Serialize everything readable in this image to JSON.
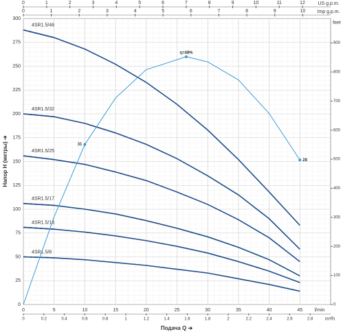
{
  "chart_data": {
    "type": "line",
    "y_axis_label": "Напор H (метры) ➔",
    "x_axis_label": "Подача Q ➔",
    "x_unit": "l/min",
    "xlim": [
      0,
      50
    ],
    "xticks": [
      0,
      5,
      10,
      15,
      20,
      25,
      30,
      35,
      40,
      45
    ],
    "ylim": [
      0,
      300
    ],
    "yticks": [
      0,
      25,
      50,
      75,
      100,
      125,
      150,
      175,
      200,
      225,
      250,
      275,
      300
    ],
    "grid": true,
    "x2_unit": "m³/h",
    "x2lim": [
      0,
      3
    ],
    "x2ticks": [
      0,
      0.2,
      0.4,
      0.6,
      0.8,
      1,
      1.2,
      1.4,
      1.6,
      1.8,
      2,
      2.2,
      2.4,
      2.6,
      2.8
    ],
    "x3_unit": "US g.p.m.",
    "x3lim": [
      0,
      13.21
    ],
    "x3ticks": [
      0,
      1,
      2,
      3,
      4,
      5,
      6,
      7,
      8,
      9,
      10,
      11,
      12
    ],
    "x4_unit": "Imp g.p.m.",
    "x4lim": [
      0,
      11
    ],
    "x4ticks": [
      0,
      1,
      2,
      3,
      4,
      5,
      6,
      7,
      8,
      9,
      10
    ],
    "y2_unit": "feet",
    "y2lim": [
      0,
      984
    ],
    "y2ticks": [
      0,
      100,
      200,
      300,
      400,
      500,
      600,
      700,
      800,
      900
    ],
    "x": [
      0,
      5,
      10,
      15,
      20,
      25,
      30,
      35,
      40,
      45
    ],
    "series": [
      {
        "name": "4SR1.5/46",
        "color": "#1d4d8a",
        "values": [
          288,
          280,
          268,
          252,
          233,
          210,
          183,
          152,
          118,
          83
        ]
      },
      {
        "name": "4SR1.5/32",
        "color": "#1d4d8a",
        "values": [
          200,
          197,
          190,
          180,
          168,
          153,
          135,
          115,
          90,
          58
        ]
      },
      {
        "name": "4SR1.5/25",
        "color": "#1d4d8a",
        "values": [
          156,
          152,
          147,
          139,
          130,
          118,
          105,
          89,
          70,
          45
        ]
      },
      {
        "name": "4SR1.5/17",
        "color": "#1d4d8a",
        "values": [
          106,
          104,
          100,
          95,
          88,
          80,
          71,
          60,
          47,
          30
        ]
      },
      {
        "name": "4SR1.5/13",
        "color": "#1d4d8a",
        "values": [
          81,
          79,
          76,
          72,
          67,
          61,
          54,
          45,
          35,
          23
        ]
      },
      {
        "name": "4SR1.5/8",
        "color": "#1d4d8a",
        "values": [
          50,
          49,
          47,
          44,
          41,
          37,
          33,
          27,
          21,
          14
        ]
      }
    ],
    "efficiency": {
      "color": "#3b9ad6",
      "ylim": [
        0,
        55.4
      ],
      "x": [
        0,
        5,
        10,
        15,
        20,
        26.5,
        30,
        35,
        40,
        45
      ],
      "values": [
        0,
        17,
        31,
        40,
        45.5,
        48,
        47,
        43.5,
        37,
        28
      ],
      "value_labels": [
        null,
        null,
        "31",
        null,
        null,
        "η=48%",
        null,
        null,
        null,
        "28"
      ]
    }
  }
}
